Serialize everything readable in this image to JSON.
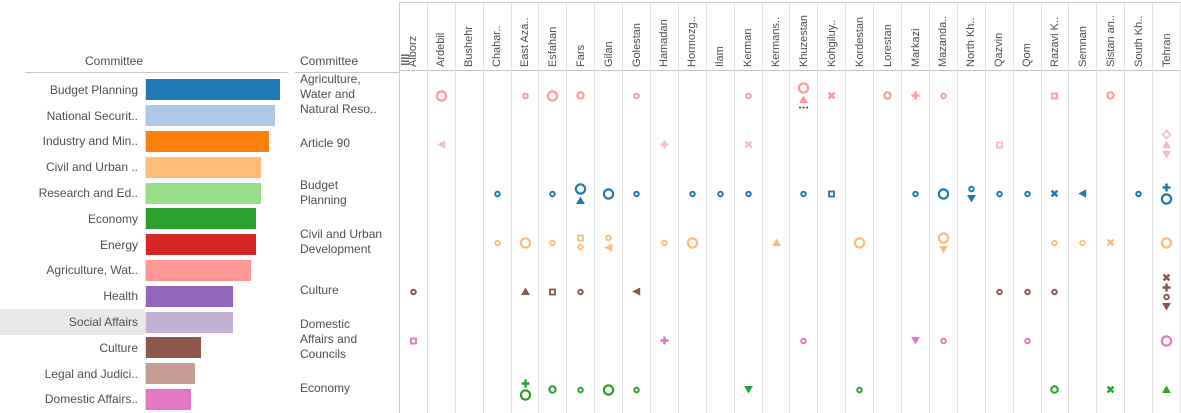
{
  "icons": {
    "matrix_sort": "sort-bars-icon"
  },
  "chart_data": [
    {
      "type": "bar",
      "title": "Committee",
      "orientation": "horizontal",
      "note": "no numeric axis shown; values are bar lengths in px",
      "xlim": [
        0,
        140
      ],
      "highlighted_category": "Social Affairs",
      "categories": [
        "Budget Planning",
        "National Securit..",
        "Industry and Min..",
        "Civil and Urban ..",
        "Research and Ed..",
        "Economy",
        "Energy",
        "Agriculture, Wat..",
        "Health",
        "Social Affairs",
        "Culture",
        "Legal and Judici..",
        "Domestic Affairs.."
      ],
      "values": [
        134,
        129,
        123,
        115,
        115,
        110,
        110,
        105,
        87,
        87,
        55,
        49,
        45
      ],
      "colors": [
        "#1f77b4",
        "#aec7e8",
        "#ff7f0e",
        "#ffbb78",
        "#98df8a",
        "#2ca02c",
        "#d62728",
        "#ff9896",
        "#9467bd",
        "#c5b0d5",
        "#8c564b",
        "#c49c94",
        "#e377c2"
      ]
    },
    {
      "type": "scatter",
      "title": "Committee",
      "columns": [
        "Alborz",
        "Ardebil",
        "Bushehr",
        "Chahar..",
        "East Aza..",
        "Esfahan",
        "Fars",
        "Gilan",
        "Golestan",
        "Hamadan",
        "Hormozg..",
        "Ilam",
        "Kerman",
        "Kermans..",
        "Khuzestan",
        "Kohgiluy..",
        "Kordestan",
        "Lorestan",
        "Markazi",
        "Mazanda..",
        "North Kh..",
        "Qazvin",
        "Qom",
        "Razavi K..",
        "Semnan",
        "Sistan an..",
        "South Kh..",
        "Tehran"
      ],
      "rows": [
        {
          "label": "Agriculture, Water and Natural Reso..",
          "color": "#ff9896",
          "marks": [
            {
              "col": 1,
              "stack": [
                "circle-lg"
              ]
            },
            {
              "col": 4,
              "stack": [
                "circle-sm"
              ]
            },
            {
              "col": 5,
              "stack": [
                "circle-lg"
              ]
            },
            {
              "col": 6,
              "stack": [
                "circle-md"
              ]
            },
            {
              "col": 8,
              "stack": [
                "circle-sm"
              ]
            },
            {
              "col": 12,
              "stack": [
                "circle-sm"
              ]
            },
            {
              "col": 14,
              "stack": [
                "circle-lg",
                "tri-up",
                "dots"
              ]
            },
            {
              "col": 15,
              "stack": [
                "x"
              ]
            },
            {
              "col": 17,
              "stack": [
                "circle-md"
              ]
            },
            {
              "col": 18,
              "stack": [
                "plus"
              ]
            },
            {
              "col": 19,
              "stack": [
                "circle-sm"
              ]
            },
            {
              "col": 23,
              "stack": [
                "square-sm"
              ]
            },
            {
              "col": 25,
              "stack": [
                "circle-md"
              ]
            }
          ]
        },
        {
          "label": "Article 90",
          "color": "#f7b6d2",
          "marks": [
            {
              "col": 1,
              "stack": [
                "tri-left"
              ]
            },
            {
              "col": 9,
              "stack": [
                "plus"
              ]
            },
            {
              "col": 12,
              "stack": [
                "x"
              ]
            },
            {
              "col": 21,
              "stack": [
                "square-sm"
              ]
            },
            {
              "col": 27,
              "stack": [
                "diamond",
                "tri-up",
                "tri-down"
              ]
            }
          ]
        },
        {
          "label": "Budget Planning",
          "color": "#1f77b4",
          "marks": [
            {
              "col": 3,
              "stack": [
                "circle-sm"
              ]
            },
            {
              "col": 5,
              "stack": [
                "circle-sm"
              ]
            },
            {
              "col": 6,
              "stack": [
                "circle-lg",
                "tri-up"
              ]
            },
            {
              "col": 7,
              "stack": [
                "circle-lg"
              ]
            },
            {
              "col": 8,
              "stack": [
                "circle-sm"
              ]
            },
            {
              "col": 10,
              "stack": [
                "circle-sm"
              ]
            },
            {
              "col": 11,
              "stack": [
                "circle-sm"
              ]
            },
            {
              "col": 12,
              "stack": [
                "circle-sm"
              ]
            },
            {
              "col": 14,
              "stack": [
                "circle-sm"
              ]
            },
            {
              "col": 15,
              "stack": [
                "square-sm"
              ]
            },
            {
              "col": 18,
              "stack": [
                "circle-sm"
              ]
            },
            {
              "col": 19,
              "stack": [
                "circle-lg"
              ]
            },
            {
              "col": 20,
              "stack": [
                "circle-sm",
                "tri-down"
              ]
            },
            {
              "col": 21,
              "stack": [
                "circle-sm"
              ]
            },
            {
              "col": 22,
              "stack": [
                "circle-sm"
              ]
            },
            {
              "col": 23,
              "stack": [
                "x"
              ]
            },
            {
              "col": 24,
              "stack": [
                "tri-left"
              ]
            },
            {
              "col": 26,
              "stack": [
                "circle-sm"
              ]
            },
            {
              "col": 27,
              "stack": [
                "plus",
                "circle-lg"
              ]
            }
          ]
        },
        {
          "label": "Civil and Urban Development",
          "color": "#ffbb78",
          "marks": [
            {
              "col": 3,
              "stack": [
                "circle-sm"
              ]
            },
            {
              "col": 4,
              "stack": [
                "circle-lg"
              ]
            },
            {
              "col": 5,
              "stack": [
                "circle-sm"
              ]
            },
            {
              "col": 6,
              "stack": [
                "square-sm",
                "circle-sm"
              ]
            },
            {
              "col": 7,
              "stack": [
                "circle-sm",
                "tri-left"
              ]
            },
            {
              "col": 9,
              "stack": [
                "circle-sm"
              ]
            },
            {
              "col": 10,
              "stack": [
                "circle-lg"
              ]
            },
            {
              "col": 13,
              "stack": [
                "tri-up"
              ]
            },
            {
              "col": 16,
              "stack": [
                "circle-lg"
              ]
            },
            {
              "col": 19,
              "stack": [
                "circle-lg",
                "tri-down"
              ]
            },
            {
              "col": 23,
              "stack": [
                "circle-sm"
              ]
            },
            {
              "col": 24,
              "stack": [
                "circle-sm"
              ]
            },
            {
              "col": 25,
              "stack": [
                "x"
              ]
            },
            {
              "col": 27,
              "stack": [
                "circle-lg"
              ]
            }
          ]
        },
        {
          "label": "Culture",
          "color": "#8c564b",
          "marks": [
            {
              "col": 0,
              "stack": [
                "circle-sm"
              ]
            },
            {
              "col": 4,
              "stack": [
                "tri-up"
              ]
            },
            {
              "col": 5,
              "stack": [
                "square-sm"
              ]
            },
            {
              "col": 6,
              "stack": [
                "circle-sm"
              ]
            },
            {
              "col": 8,
              "stack": [
                "tri-left"
              ]
            },
            {
              "col": 21,
              "stack": [
                "circle-sm"
              ]
            },
            {
              "col": 22,
              "stack": [
                "circle-sm"
              ]
            },
            {
              "col": 23,
              "stack": [
                "circle-sm"
              ]
            },
            {
              "col": 27,
              "stack": [
                "x",
                "plus",
                "circle-sm",
                "tri-down"
              ]
            }
          ]
        },
        {
          "label": "Domestic Affairs and Councils",
          "color": "#e377c2",
          "marks": [
            {
              "col": 0,
              "stack": [
                "square-sm"
              ]
            },
            {
              "col": 9,
              "stack": [
                "plus"
              ]
            },
            {
              "col": 14,
              "stack": [
                "circle-sm"
              ]
            },
            {
              "col": 18,
              "stack": [
                "tri-down"
              ]
            },
            {
              "col": 19,
              "stack": [
                "circle-sm"
              ]
            },
            {
              "col": 22,
              "stack": [
                "circle-sm"
              ]
            },
            {
              "col": 27,
              "stack": [
                "circle-lg"
              ]
            }
          ]
        },
        {
          "label": "Economy",
          "color": "#2ca02c",
          "marks": [
            {
              "col": 4,
              "stack": [
                "plus",
                "circle-lg"
              ]
            },
            {
              "col": 5,
              "stack": [
                "circle-md"
              ]
            },
            {
              "col": 6,
              "stack": [
                "circle-sm"
              ]
            },
            {
              "col": 7,
              "stack": [
                "circle-lg"
              ]
            },
            {
              "col": 8,
              "stack": [
                "circle-sm"
              ]
            },
            {
              "col": 12,
              "stack": [
                "tri-down"
              ]
            },
            {
              "col": 16,
              "stack": [
                "circle-sm"
              ]
            },
            {
              "col": 23,
              "stack": [
                "circle-md"
              ]
            },
            {
              "col": 25,
              "stack": [
                "x"
              ]
            },
            {
              "col": 27,
              "stack": [
                "tri-up"
              ]
            }
          ]
        }
      ]
    }
  ]
}
